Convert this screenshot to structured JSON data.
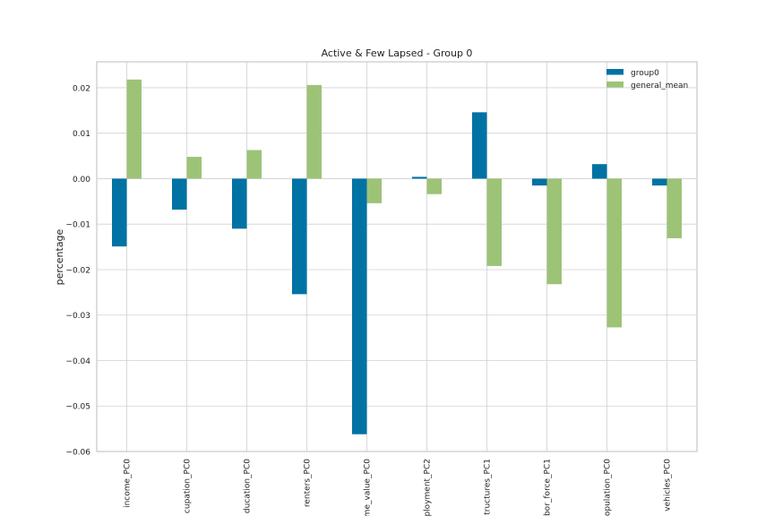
{
  "chart_data": {
    "type": "bar",
    "title": "Active & Few Lapsed - Group 0",
    "xlabel": "",
    "ylabel": "percentage",
    "categories": [
      "income_PC0",
      "cupation_PC0",
      "ducation_PC0",
      "renters_PC0",
      "me_value_PC0",
      "ployment_PC2",
      "tructures_PC1",
      "bor_force_PC1",
      "opulation_PC0",
      "vehicles_PC0"
    ],
    "series": [
      {
        "name": "group0",
        "color": "#0072a3",
        "values": [
          -0.0149,
          -0.0068,
          -0.011,
          -0.0254,
          -0.0562,
          0.0004,
          0.0146,
          -0.0015,
          0.0032,
          -0.0015
        ]
      },
      {
        "name": "general_mean",
        "color": "#9dc377",
        "values": [
          0.0218,
          0.0048,
          0.0063,
          0.0206,
          -0.0054,
          -0.0034,
          -0.0192,
          -0.0232,
          -0.0327,
          -0.0131
        ]
      }
    ],
    "ylim": [
      -0.06,
      0.0257
    ],
    "yticks": [
      "0.02",
      "0.01",
      "0.00",
      "−0.01",
      "−0.02",
      "−0.03",
      "−0.04",
      "−0.05",
      "−0.06"
    ],
    "ytick_values": [
      0.02,
      0.01,
      0.0,
      -0.01,
      -0.02,
      -0.03,
      -0.04,
      -0.05,
      -0.06
    ],
    "grid": true,
    "legend": "top-right"
  }
}
